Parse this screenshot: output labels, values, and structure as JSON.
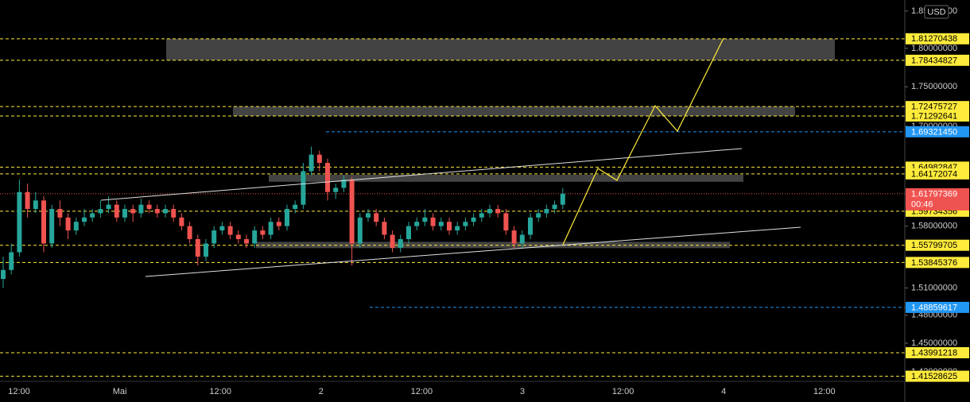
{
  "chart_data": {
    "type": "candlestick",
    "currency": "USD",
    "log_scale": true,
    "up_color": "#26a69a",
    "down_color": "#ef5350",
    "ylim": [
      1.41,
      1.865
    ],
    "yticks": [
      {
        "value": 1.85,
        "label": "1.85000000"
      },
      {
        "value": 1.8,
        "label": "1.80000000"
      },
      {
        "value": 1.75,
        "label": "1.75000000"
      },
      {
        "value": 1.7,
        "label": "1.70000000"
      },
      {
        "value": 1.58,
        "label": "1.58000000"
      },
      {
        "value": 1.51,
        "label": "1.51000000"
      },
      {
        "value": 1.48,
        "label": "1.48000000"
      },
      {
        "value": 1.45,
        "label": "1.45000000"
      },
      {
        "value": 1.42,
        "label": "1.42000000"
      }
    ],
    "x_labels": [
      "12:00",
      "Mai",
      "12:00",
      "2",
      "12:00",
      "3",
      "12:00",
      "4",
      "12:00"
    ],
    "ohlc": [
      [
        1.52,
        1.545,
        1.51,
        1.53
      ],
      [
        1.53,
        1.56,
        1.525,
        1.55
      ],
      [
        1.55,
        1.635,
        1.545,
        1.62
      ],
      [
        1.62,
        1.63,
        1.59,
        1.6
      ],
      [
        1.6,
        1.62,
        1.595,
        1.61
      ],
      [
        1.61,
        1.615,
        1.55,
        1.56
      ],
      [
        1.56,
        1.605,
        1.555,
        1.6
      ],
      [
        1.6,
        1.61,
        1.58,
        1.59
      ],
      [
        1.59,
        1.595,
        1.565,
        1.575
      ],
      [
        1.575,
        1.59,
        1.57,
        1.585
      ],
      [
        1.585,
        1.6,
        1.58,
        1.59
      ],
      [
        1.59,
        1.6,
        1.585,
        1.595
      ],
      [
        1.595,
        1.61,
        1.59,
        1.6
      ],
      [
        1.6,
        1.615,
        1.595,
        1.605
      ],
      [
        1.605,
        1.61,
        1.585,
        1.59
      ],
      [
        1.59,
        1.605,
        1.585,
        1.6
      ],
      [
        1.6,
        1.605,
        1.585,
        1.595
      ],
      [
        1.595,
        1.612,
        1.59,
        1.605
      ],
      [
        1.605,
        1.61,
        1.595,
        1.6
      ],
      [
        1.6,
        1.605,
        1.59,
        1.595
      ],
      [
        1.595,
        1.605,
        1.59,
        1.6
      ],
      [
        1.6,
        1.605,
        1.585,
        1.59
      ],
      [
        1.59,
        1.595,
        1.575,
        1.58
      ],
      [
        1.58,
        1.585,
        1.56,
        1.565
      ],
      [
        1.565,
        1.57,
        1.535,
        1.545
      ],
      [
        1.545,
        1.565,
        1.54,
        1.56
      ],
      [
        1.56,
        1.58,
        1.555,
        1.575
      ],
      [
        1.575,
        1.585,
        1.57,
        1.58
      ],
      [
        1.58,
        1.585,
        1.565,
        1.57
      ],
      [
        1.57,
        1.575,
        1.56,
        1.565
      ],
      [
        1.565,
        1.57,
        1.555,
        1.56
      ],
      [
        1.56,
        1.58,
        1.555,
        1.575
      ],
      [
        1.575,
        1.58,
        1.565,
        1.57
      ],
      [
        1.57,
        1.59,
        1.565,
        1.585
      ],
      [
        1.585,
        1.59,
        1.575,
        1.58
      ],
      [
        1.58,
        1.605,
        1.575,
        1.6
      ],
      [
        1.6,
        1.61,
        1.595,
        1.605
      ],
      [
        1.605,
        1.655,
        1.6,
        1.645
      ],
      [
        1.645,
        1.675,
        1.64,
        1.665
      ],
      [
        1.665,
        1.67,
        1.645,
        1.655
      ],
      [
        1.655,
        1.66,
        1.61,
        1.62
      ],
      [
        1.62,
        1.63,
        1.612,
        1.625
      ],
      [
        1.625,
        1.64,
        1.62,
        1.635
      ],
      [
        1.635,
        1.638,
        1.535,
        1.56
      ],
      [
        1.56,
        1.595,
        1.555,
        1.59
      ],
      [
        1.59,
        1.6,
        1.585,
        1.595
      ],
      [
        1.595,
        1.6,
        1.58,
        1.585
      ],
      [
        1.585,
        1.59,
        1.565,
        1.57
      ],
      [
        1.57,
        1.575,
        1.55,
        1.555
      ],
      [
        1.555,
        1.57,
        1.55,
        1.565
      ],
      [
        1.565,
        1.585,
        1.56,
        1.58
      ],
      [
        1.58,
        1.59,
        1.575,
        1.585
      ],
      [
        1.585,
        1.6,
        1.58,
        1.59
      ],
      [
        1.59,
        1.595,
        1.575,
        1.58
      ],
      [
        1.58,
        1.59,
        1.575,
        1.585
      ],
      [
        1.585,
        1.59,
        1.57,
        1.575
      ],
      [
        1.575,
        1.585,
        1.57,
        1.58
      ],
      [
        1.58,
        1.59,
        1.575,
        1.585
      ],
      [
        1.585,
        1.595,
        1.58,
        1.59
      ],
      [
        1.59,
        1.6,
        1.585,
        1.595
      ],
      [
        1.595,
        1.605,
        1.59,
        1.6
      ],
      [
        1.6,
        1.605,
        1.59,
        1.595
      ],
      [
        1.595,
        1.6,
        1.57,
        1.575
      ],
      [
        1.575,
        1.58,
        1.555,
        1.56
      ],
      [
        1.56,
        1.575,
        1.555,
        1.57
      ],
      [
        1.57,
        1.595,
        1.565,
        1.59
      ],
      [
        1.59,
        1.6,
        1.585,
        1.595
      ],
      [
        1.595,
        1.605,
        1.59,
        1.6
      ],
      [
        1.6,
        1.61,
        1.595,
        1.605
      ],
      [
        1.605,
        1.625,
        1.6,
        1.618
      ]
    ],
    "zones": [
      [
        1.78434827,
        1.81270438
      ],
      [
        1.71292641,
        1.72475727
      ],
      [
        1.6322,
        1.6407
      ],
      [
        1.5547,
        1.5619
      ]
    ],
    "levels": {
      "color": "#ffeb3b",
      "values": [
        1.81270438,
        1.78434827,
        1.72475727,
        1.71292641,
        1.64982847,
        1.64172074,
        1.59734356,
        1.55799705,
        1.53845376,
        1.43991218,
        1.41528625
      ],
      "value_labels": [
        "1.81270438",
        "1.78434827",
        "1.72475727",
        "1.71292641",
        "1.64982847",
        "1.64172074",
        "1.59734356",
        "1.55799705",
        "1.53845376",
        "1.43991218",
        "1.41528625"
      ]
    },
    "blue_levels": {
      "color": "#2196f3",
      "values": [
        1.6932145,
        1.48859617
      ],
      "value_labels": [
        "1.69321450",
        "1.48859617"
      ]
    },
    "last_price": {
      "color": "#ef5350",
      "value": 1.61797369,
      "label": "1.61797369",
      "countdown": "00:46"
    }
  }
}
